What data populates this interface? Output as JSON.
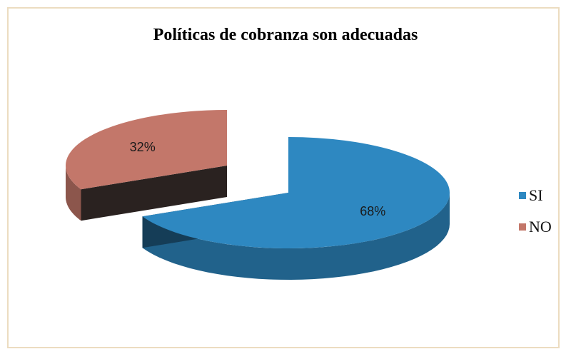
{
  "chart_data": {
    "type": "pie",
    "title": "Políticas de cobranza son adecuadas",
    "categories": [
      "SI",
      "NO"
    ],
    "values": [
      68,
      32
    ],
    "data_labels": [
      "68%",
      "32%"
    ],
    "colors": [
      "#2e88c1",
      "#c3776a"
    ],
    "legend_position": "right",
    "style": "3d-exploded"
  }
}
